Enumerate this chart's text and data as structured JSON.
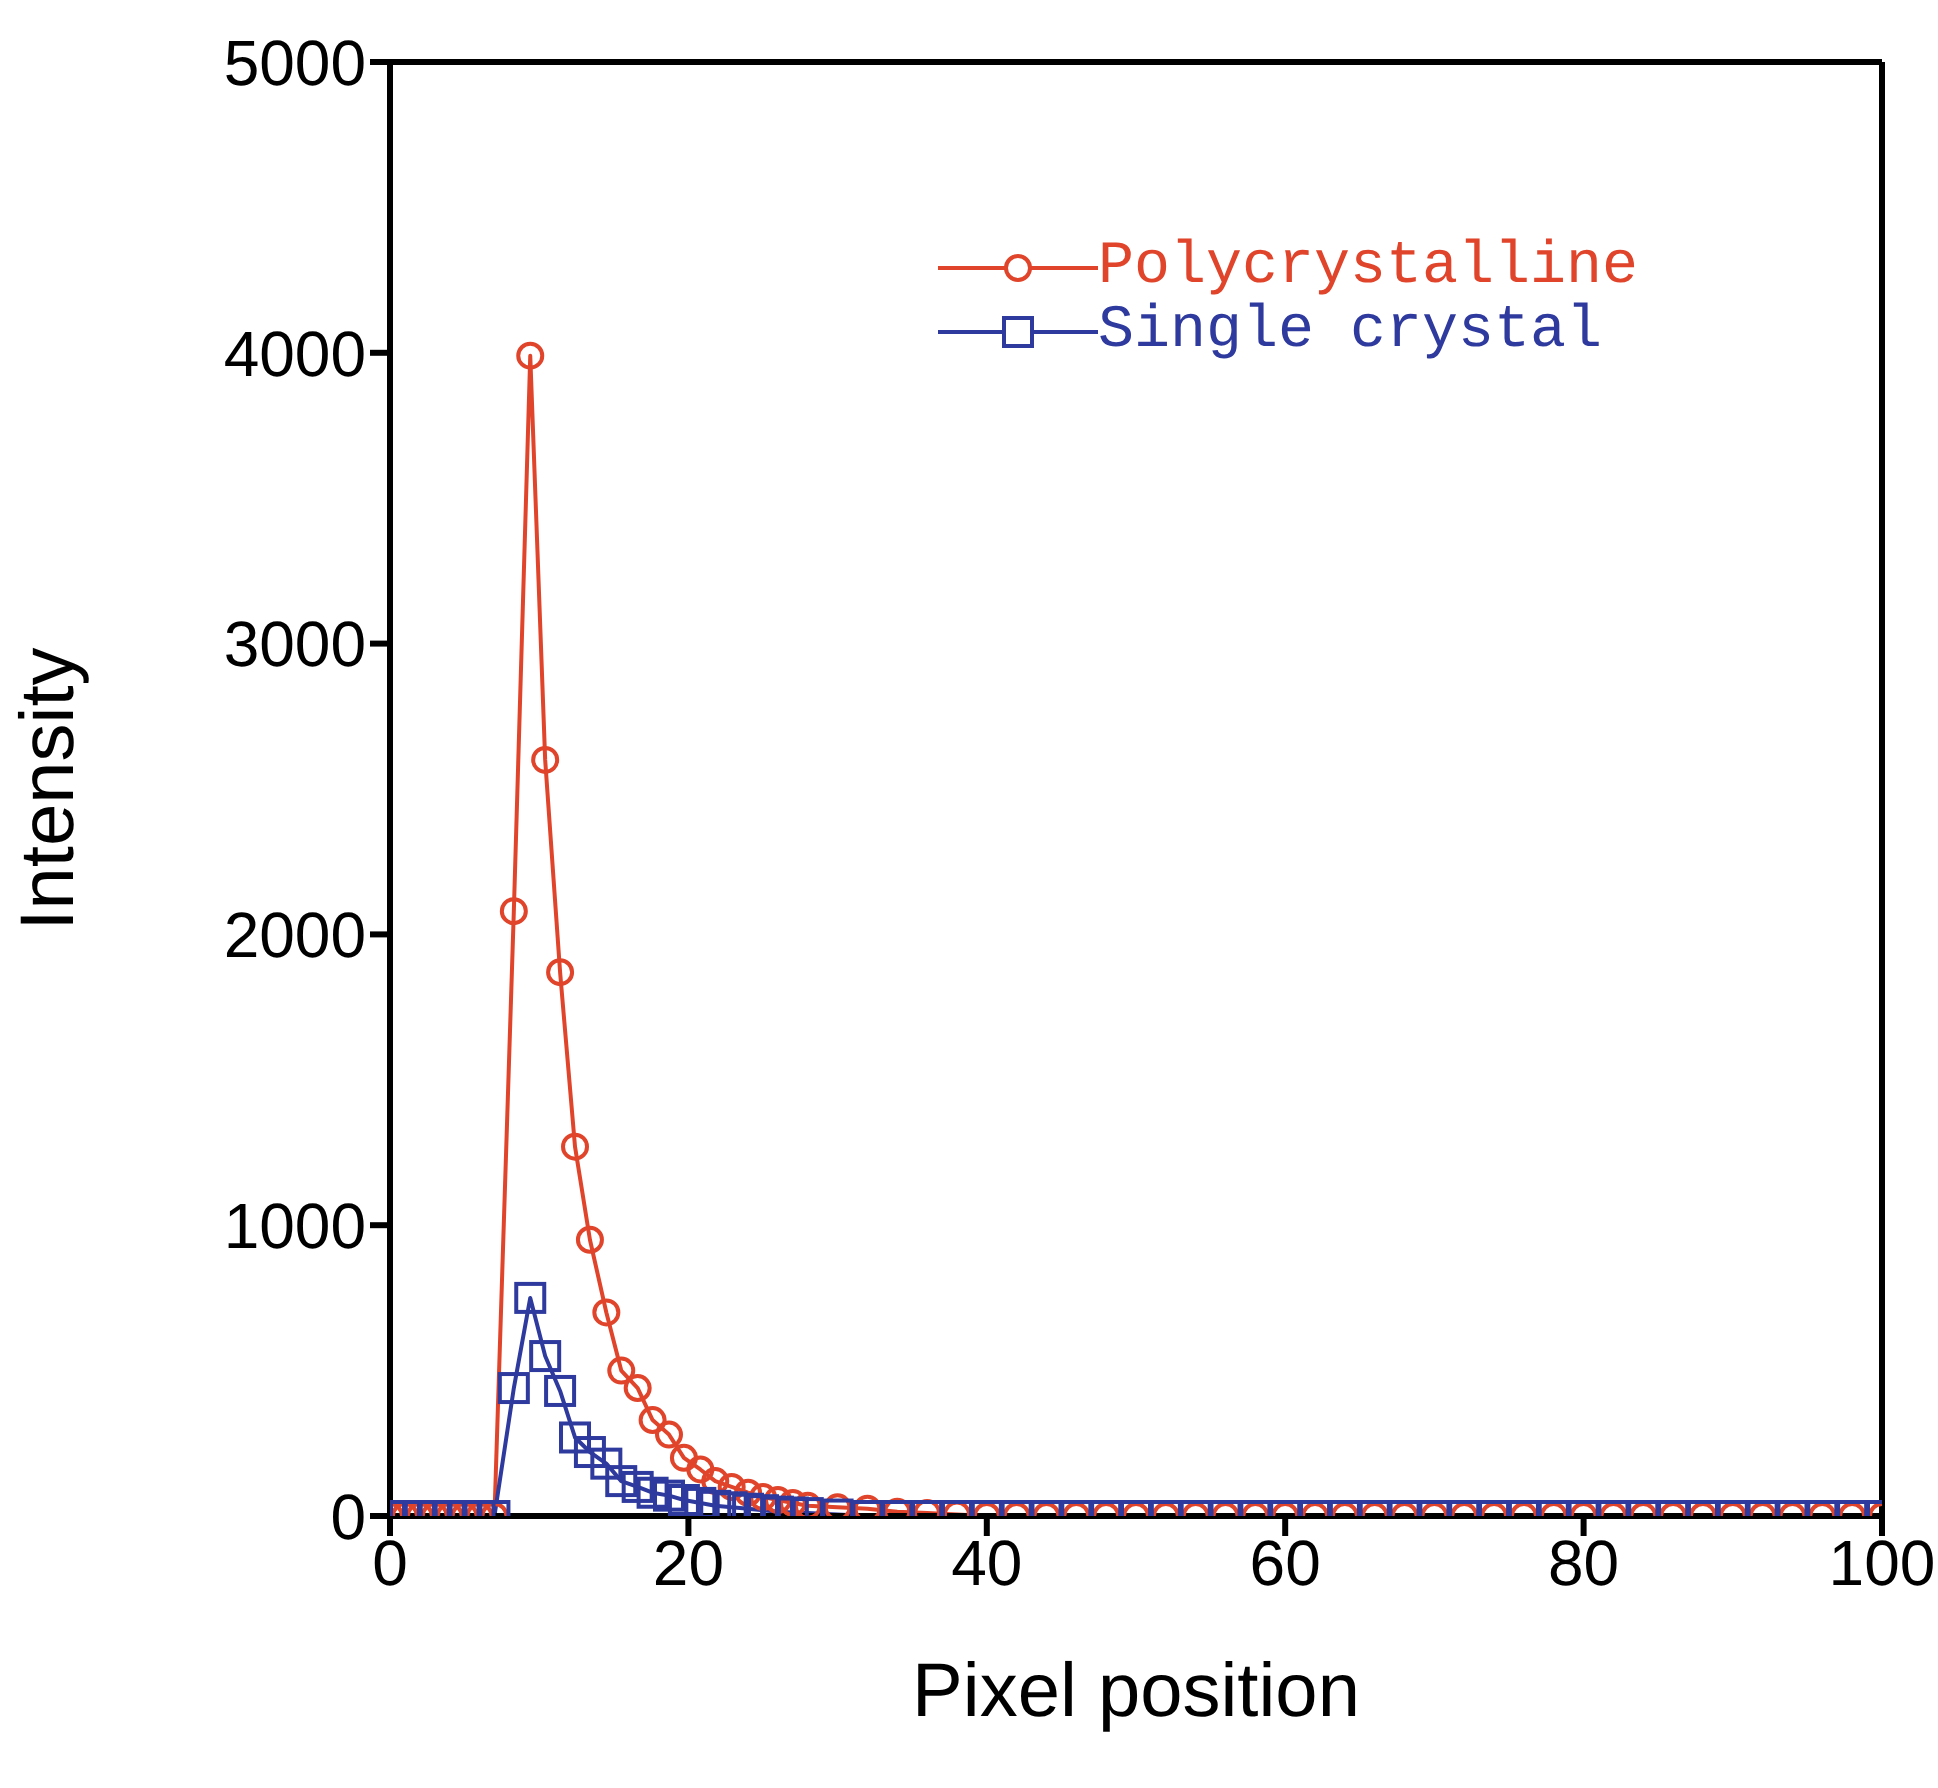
{
  "chart_data": {
    "type": "line",
    "xlabel": "Pixel position",
    "ylabel": "Intensity",
    "x": [
      0,
      1,
      2,
      3,
      4,
      5,
      6,
      7,
      8.3,
      9.4,
      10.4,
      11.4,
      12.4,
      13.4,
      14.5,
      15.5,
      16.6,
      17.6,
      18.7,
      19.7,
      20.8,
      21.8,
      22.9,
      24,
      25,
      26,
      27,
      28,
      30,
      32,
      34,
      36,
      38,
      40,
      42,
      44,
      46,
      48,
      50,
      52,
      54,
      56,
      58,
      60,
      62,
      64,
      66,
      68,
      70,
      72,
      74,
      76,
      78,
      80,
      82,
      84,
      86,
      88,
      90,
      92,
      94,
      96,
      98,
      100
    ],
    "series": [
      {
        "name": "Polycrystalline",
        "color": "#e0442a",
        "marker": "circle",
        "values": [
          0,
          0,
          0,
          0,
          0,
          0,
          0,
          0,
          2080,
          3990,
          2600,
          1870,
          1270,
          950,
          700,
          500,
          440,
          330,
          280,
          200,
          160,
          120,
          100,
          80,
          65,
          55,
          45,
          35,
          30,
          25,
          15,
          10,
          5,
          0,
          0,
          0,
          0,
          0,
          0,
          0,
          0,
          0,
          0,
          0,
          0,
          0,
          0,
          0,
          0,
          0,
          0,
          0,
          0,
          0,
          0,
          0,
          0,
          0,
          0,
          0,
          0,
          0,
          0,
          0
        ]
      },
      {
        "name": "Single crystal",
        "color": "#2f3a9e",
        "marker": "square",
        "values": [
          0,
          0,
          0,
          0,
          0,
          0,
          0,
          0,
          440,
          750,
          550,
          430,
          270,
          220,
          180,
          120,
          100,
          80,
          70,
          55,
          45,
          35,
          30,
          25,
          20,
          15,
          12,
          10,
          5,
          0,
          0,
          0,
          0,
          0,
          0,
          0,
          0,
          0,
          0,
          0,
          0,
          0,
          0,
          0,
          0,
          0,
          0,
          0,
          0,
          0,
          0,
          0,
          0,
          0,
          0,
          0,
          0,
          0,
          0,
          0,
          0,
          0,
          0,
          0
        ]
      }
    ],
    "xlim": [
      0,
      100
    ],
    "xticks": [
      0,
      20,
      40,
      60,
      80,
      100
    ],
    "ylim": [
      0,
      5000
    ],
    "yticks": [
      0,
      1000,
      2000,
      3000,
      4000,
      5000
    ],
    "grid": false,
    "legend": "top right",
    "line_style": "solid"
  }
}
